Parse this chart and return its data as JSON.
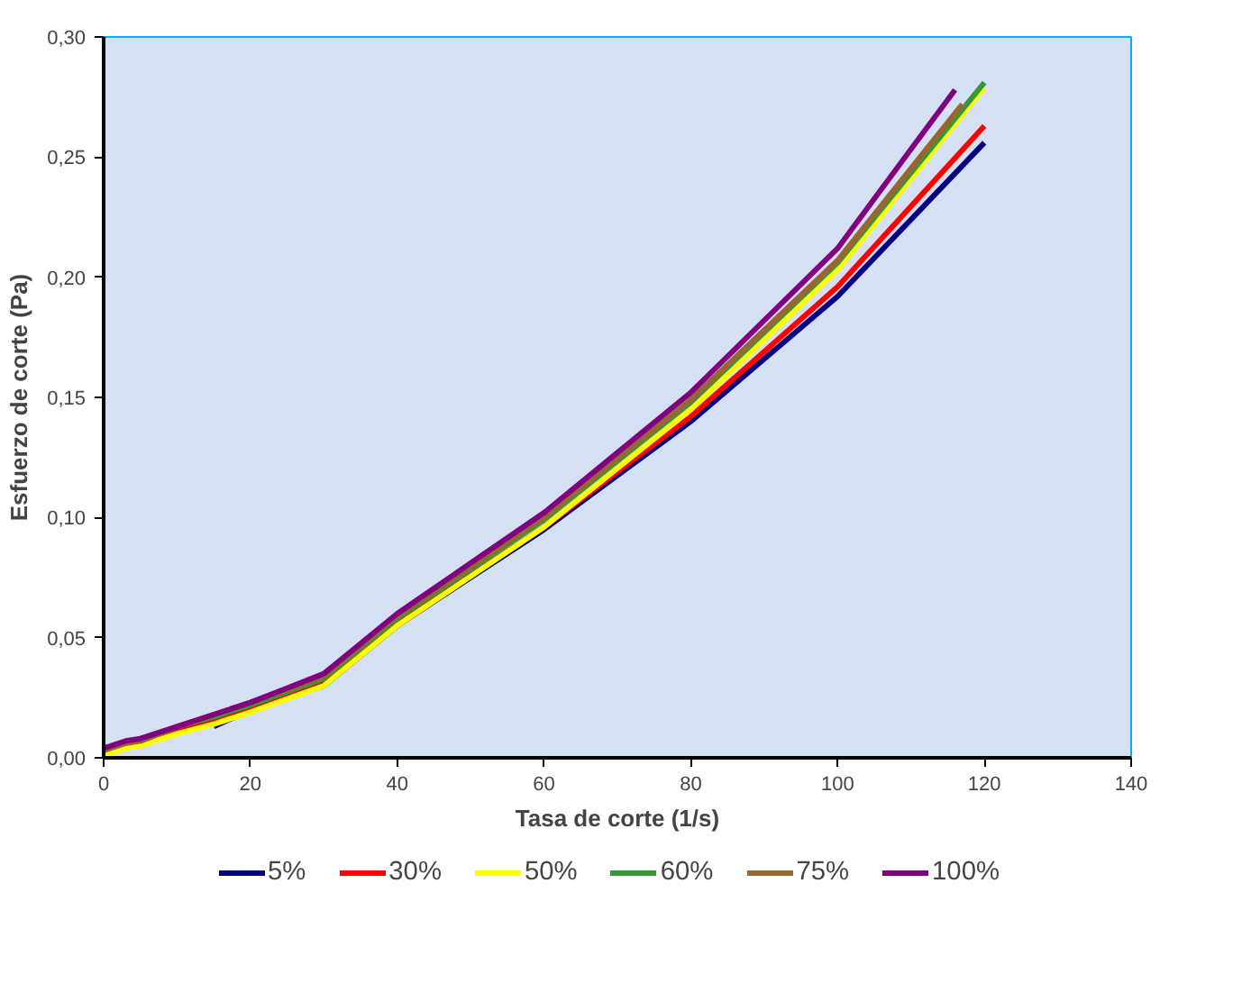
{
  "chart_data": {
    "type": "line",
    "xlabel": "Tasa de corte (1/s)",
    "ylabel": "Esfuerzo de corte (Pa)",
    "xlim": [
      0,
      140
    ],
    "ylim": [
      0,
      0.3
    ],
    "xticks": [
      0,
      20,
      40,
      60,
      80,
      100,
      120,
      140
    ],
    "yticks": [
      {
        "value": 0,
        "label": "0,00"
      },
      {
        "value": 0.05,
        "label": "0,05"
      },
      {
        "value": 0.1,
        "label": "0,10"
      },
      {
        "value": 0.15,
        "label": "0,15"
      },
      {
        "value": 0.2,
        "label": "0,20"
      },
      {
        "value": 0.25,
        "label": "0,25"
      },
      {
        "value": 0.3,
        "label": "0,30"
      }
    ],
    "grid": false,
    "legend": "bottom",
    "marker": "none",
    "line_style": "solid",
    "series": [
      {
        "name": "5%",
        "color": "#000080",
        "x": [
          15,
          20,
          30,
          40,
          60,
          80,
          100,
          120
        ],
        "values": [
          0.013,
          0.02,
          0.03,
          0.055,
          0.095,
          0.14,
          0.192,
          0.256
        ]
      },
      {
        "name": "30%",
        "color": "#ff0000",
        "x": [
          5,
          10,
          15,
          20,
          30,
          40,
          60,
          80,
          100,
          120
        ],
        "values": [
          0.007,
          0.012,
          0.016,
          0.021,
          0.031,
          0.056,
          0.096,
          0.142,
          0.196,
          0.263
        ]
      },
      {
        "name": "50%",
        "color": "#ffff00",
        "x": [
          0,
          3,
          5,
          10,
          15,
          20,
          30,
          40,
          60,
          80,
          100,
          120
        ],
        "values": [
          0.001,
          0.004,
          0.005,
          0.01,
          0.014,
          0.019,
          0.03,
          0.055,
          0.096,
          0.145,
          0.203,
          0.279
        ]
      },
      {
        "name": "60%",
        "color": "#339933",
        "x": [
          5,
          10,
          15,
          20,
          30,
          40,
          60,
          80,
          100,
          120
        ],
        "values": [
          0.007,
          0.013,
          0.017,
          0.022,
          0.033,
          0.058,
          0.099,
          0.148,
          0.206,
          0.281
        ]
      },
      {
        "name": "75%",
        "color": "#996633",
        "x": [
          0,
          3,
          5,
          10,
          15,
          20,
          30,
          40,
          60,
          80,
          100,
          117
        ],
        "values": [
          0.003,
          0.006,
          0.007,
          0.013,
          0.018,
          0.023,
          0.034,
          0.059,
          0.1,
          0.149,
          0.207,
          0.272
        ]
      },
      {
        "name": "100%",
        "color": "#800080",
        "x": [
          0,
          3,
          5,
          10,
          15,
          20,
          30,
          40,
          60,
          80,
          100,
          116
        ],
        "values": [
          0.004,
          0.007,
          0.008,
          0.013,
          0.018,
          0.023,
          0.035,
          0.06,
          0.102,
          0.152,
          0.212,
          0.278
        ]
      }
    ]
  }
}
